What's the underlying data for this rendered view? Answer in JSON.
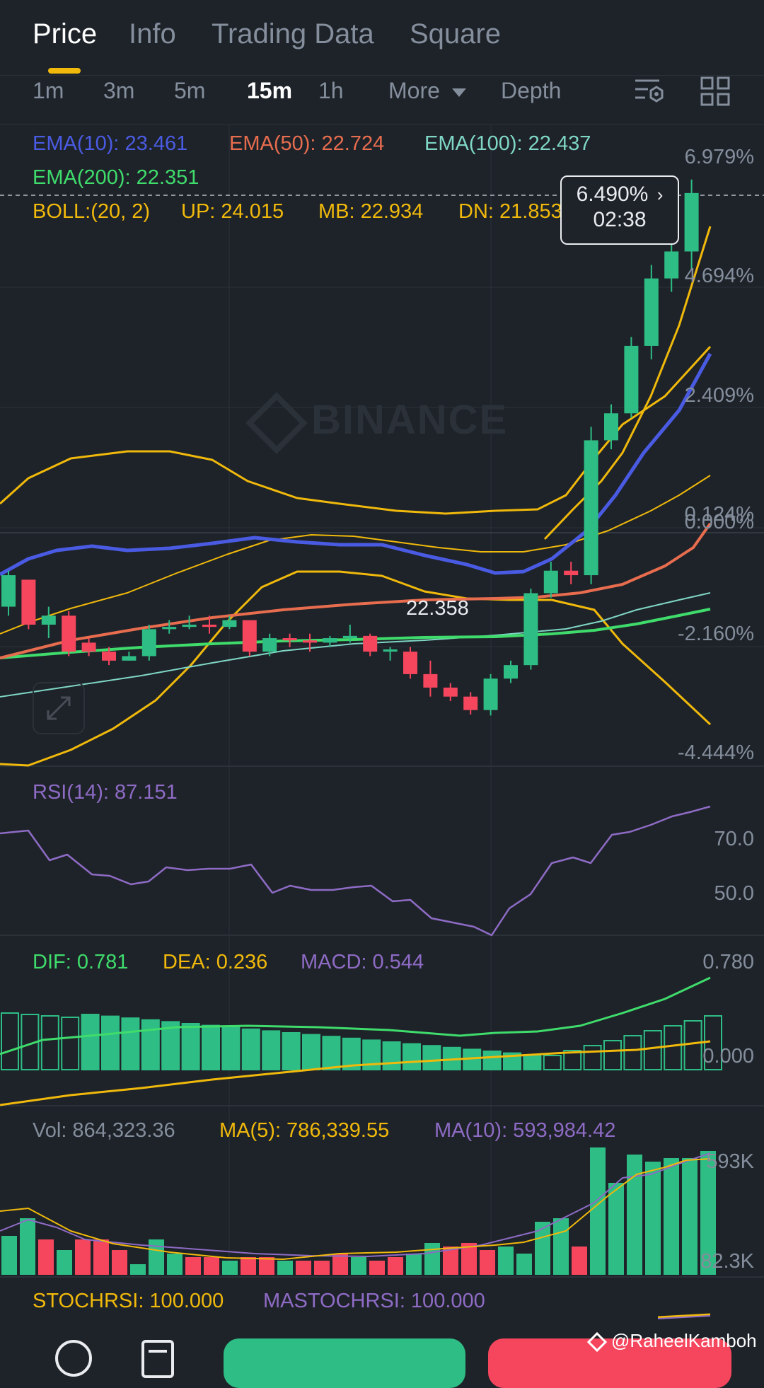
{
  "tabs": [
    {
      "label": "Price",
      "active": true
    },
    {
      "label": "Info",
      "active": false
    },
    {
      "label": "Trading Data",
      "active": false
    },
    {
      "label": "Square",
      "active": false
    }
  ],
  "timeframes": {
    "items": [
      "1m",
      "3m",
      "5m",
      "15m",
      "1h"
    ],
    "active": "15m",
    "more_label": "More",
    "depth_label": "Depth"
  },
  "indicators": {
    "ema10": "EMA(10): 23.461",
    "ema50": "EMA(50): 22.724",
    "ema100": "EMA(100): 22.437",
    "ema200": "EMA(200): 22.351",
    "boll": "BOLL:(20, 2)",
    "boll_up": "UP: 24.015",
    "boll_mb": "MB: 22.934",
    "boll_dn": "DN: 21.853"
  },
  "price_tag": {
    "percent": "6.490%",
    "countdown": "02:38"
  },
  "price_axis": [
    "6.979%",
    "4.694%",
    "2.409%",
    "0.124%",
    "0.000%",
    "-2.160%",
    "-4.444%"
  ],
  "low_marker": "22.358",
  "watermark": "BINANCE",
  "rsi": {
    "label": "RSI(14): 87.151",
    "axis": [
      "70.0",
      "50.0"
    ]
  },
  "macd": {
    "dif": "DIF: 0.781",
    "dea": "DEA: 0.236",
    "macd": "MACD: 0.544",
    "axis": [
      "0.780",
      "0.000"
    ]
  },
  "volume": {
    "vol": "Vol: 864,323.36",
    "ma5": "MA(5): 786,339.55",
    "ma10": "MA(10): 593,984.42",
    "axis": [
      "593K",
      "82.3K"
    ]
  },
  "stochrsi": {
    "stoch": "STOCHRSI: 100.000",
    "mastoch": "MASTOCHRSI: 100.000"
  },
  "credit": "@RaheelKamboh",
  "colors": {
    "up": "#2ebd85",
    "down": "#f6465d",
    "ema10": "#4a5be3",
    "ema50": "#e86d4f",
    "ema100": "#7fd6c5",
    "ema200": "#3fdc6c",
    "boll": "#f0b90b",
    "rsi": "#8e6bc5",
    "bg": "#1e2329"
  },
  "chart_data": {
    "type": "candlestick",
    "candles": [
      {
        "o": 22.6,
        "h": 22.68,
        "l": 22.58,
        "c": 22.67
      },
      {
        "o": 22.66,
        "h": 22.66,
        "l": 22.55,
        "c": 22.56
      },
      {
        "o": 22.56,
        "h": 22.6,
        "l": 22.53,
        "c": 22.58
      },
      {
        "o": 22.58,
        "h": 22.59,
        "l": 22.49,
        "c": 22.5
      },
      {
        "o": 22.52,
        "h": 22.53,
        "l": 22.49,
        "c": 22.5
      },
      {
        "o": 22.5,
        "h": 22.51,
        "l": 22.47,
        "c": 22.48
      },
      {
        "o": 22.48,
        "h": 22.5,
        "l": 22.48,
        "c": 22.49
      },
      {
        "o": 22.49,
        "h": 22.56,
        "l": 22.48,
        "c": 22.55
      },
      {
        "o": 22.55,
        "h": 22.57,
        "l": 22.54,
        "c": 22.555
      },
      {
        "o": 22.555,
        "h": 22.58,
        "l": 22.55,
        "c": 22.56
      },
      {
        "o": 22.56,
        "h": 22.58,
        "l": 22.54,
        "c": 22.555
      },
      {
        "o": 22.555,
        "h": 22.58,
        "l": 22.55,
        "c": 22.57
      },
      {
        "o": 22.57,
        "h": 22.57,
        "l": 22.49,
        "c": 22.5
      },
      {
        "o": 22.5,
        "h": 22.54,
        "l": 22.49,
        "c": 22.53
      },
      {
        "o": 22.53,
        "h": 22.54,
        "l": 22.51,
        "c": 22.525
      },
      {
        "o": 22.525,
        "h": 22.54,
        "l": 22.5,
        "c": 22.52
      },
      {
        "o": 22.52,
        "h": 22.535,
        "l": 22.51,
        "c": 22.53
      },
      {
        "o": 22.53,
        "h": 22.56,
        "l": 22.52,
        "c": 22.535
      },
      {
        "o": 22.535,
        "h": 22.54,
        "l": 22.49,
        "c": 22.5
      },
      {
        "o": 22.5,
        "h": 22.51,
        "l": 22.48,
        "c": 22.505
      },
      {
        "o": 22.5,
        "h": 22.51,
        "l": 22.44,
        "c": 22.45
      },
      {
        "o": 22.45,
        "h": 22.48,
        "l": 22.4,
        "c": 22.42
      },
      {
        "o": 22.42,
        "h": 22.43,
        "l": 22.39,
        "c": 22.4
      },
      {
        "o": 22.4,
        "h": 22.41,
        "l": 22.36,
        "c": 22.37
      },
      {
        "o": 22.37,
        "h": 22.45,
        "l": 22.358,
        "c": 22.44
      },
      {
        "o": 22.44,
        "h": 22.48,
        "l": 22.43,
        "c": 22.47
      },
      {
        "o": 22.47,
        "h": 22.64,
        "l": 22.46,
        "c": 22.63
      },
      {
        "o": 22.63,
        "h": 22.7,
        "l": 22.62,
        "c": 22.68
      },
      {
        "o": 22.68,
        "h": 22.7,
        "l": 22.65,
        "c": 22.67
      },
      {
        "o": 22.67,
        "h": 23.0,
        "l": 22.65,
        "c": 22.97
      },
      {
        "o": 22.97,
        "h": 23.05,
        "l": 22.95,
        "c": 23.03
      },
      {
        "o": 23.03,
        "h": 23.2,
        "l": 23.02,
        "c": 23.18
      },
      {
        "o": 23.18,
        "h": 23.36,
        "l": 23.15,
        "c": 23.33
      },
      {
        "o": 23.33,
        "h": 23.45,
        "l": 23.3,
        "c": 23.39
      },
      {
        "o": 23.39,
        "h": 23.55,
        "l": 23.35,
        "c": 23.52
      }
    ]
  }
}
